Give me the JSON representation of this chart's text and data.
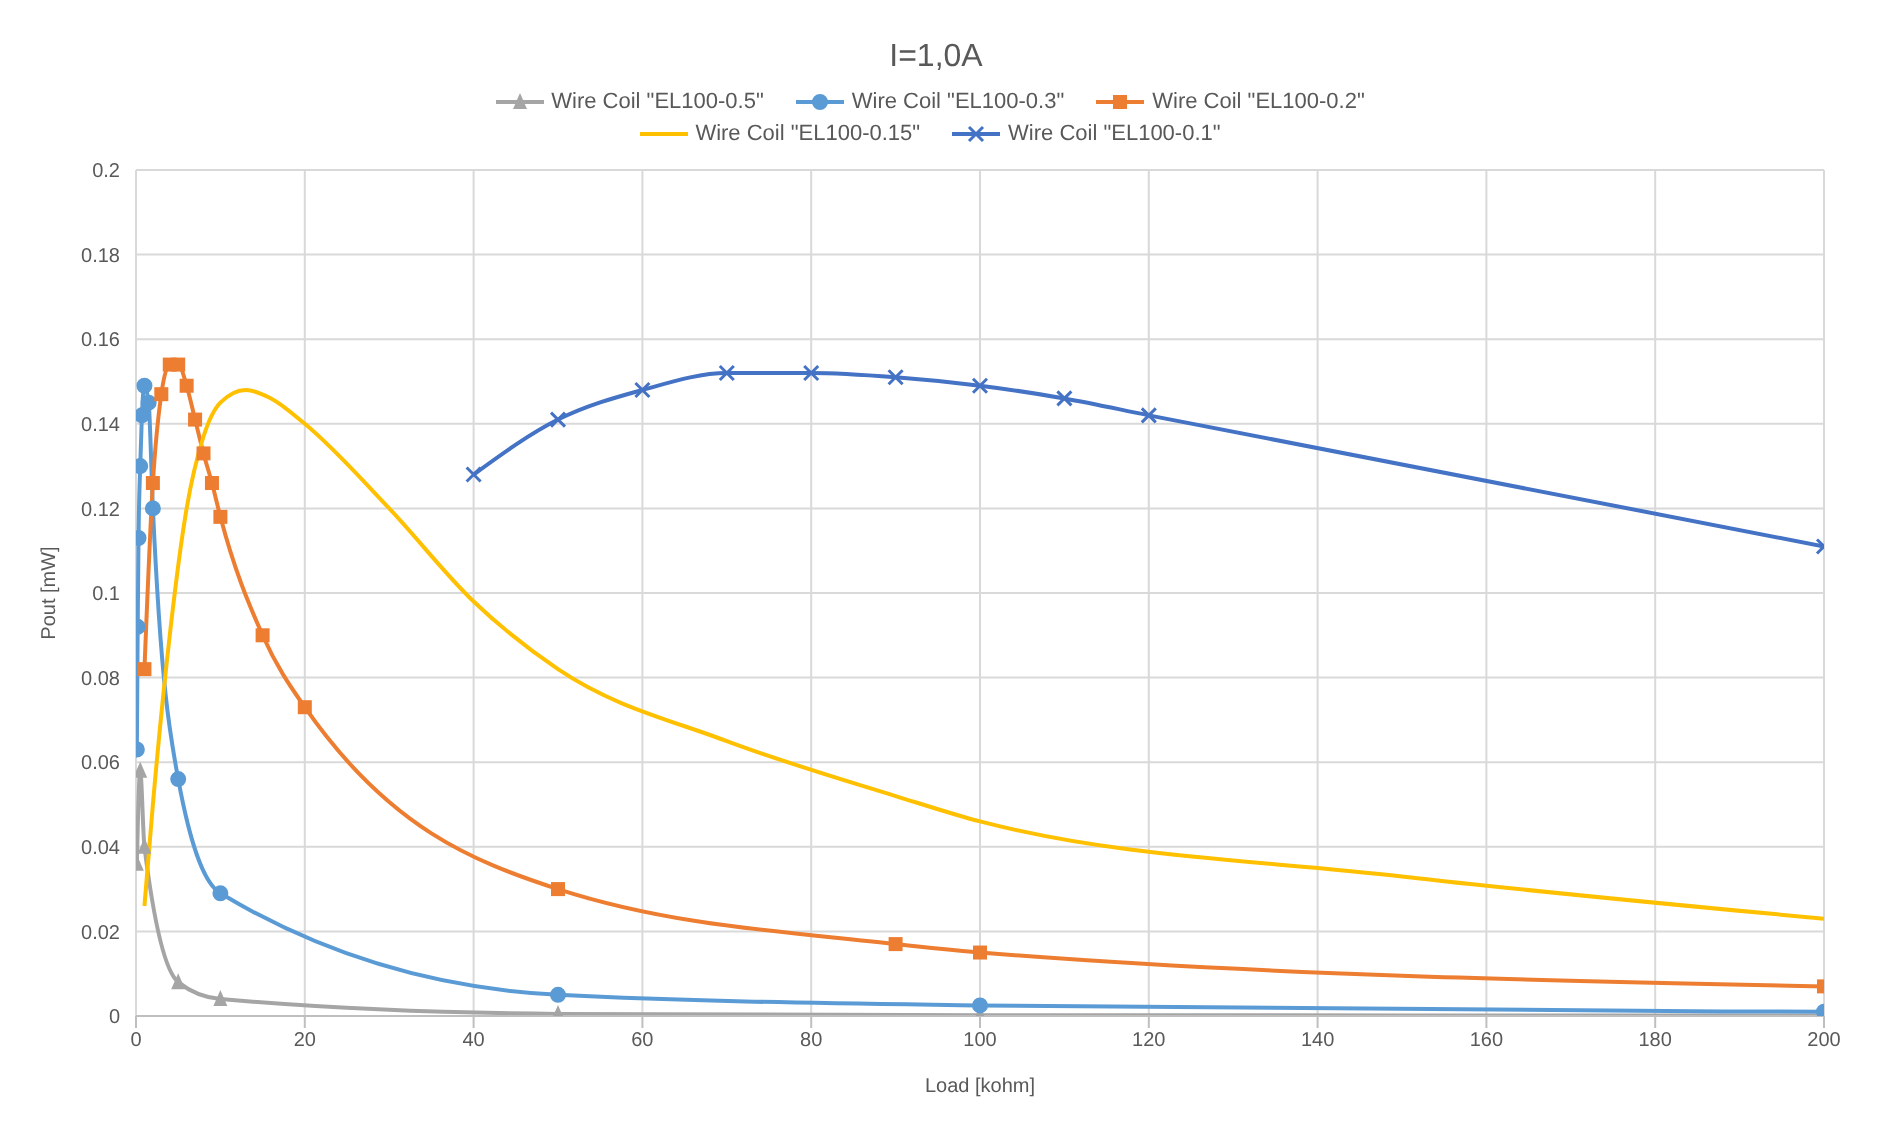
{
  "chart_data": {
    "type": "line",
    "title": "I=1,0A",
    "xlabel": "Load [kohm]",
    "ylabel": "Pout [mW]",
    "xlim": [
      0,
      200
    ],
    "xticks": [
      0,
      20,
      40,
      60,
      80,
      100,
      120,
      140,
      160,
      180,
      200
    ],
    "ylim": [
      0,
      0.2
    ],
    "yticks": [
      0,
      0.02,
      0.04,
      0.06,
      0.08,
      0.1,
      0.12,
      0.14,
      0.16,
      0.18,
      0.2
    ],
    "grid": true,
    "legend": "top",
    "line_style": "solid",
    "series": [
      {
        "name": "Wire Coil \"EL100-0.5\"",
        "color": "#a5a5a5",
        "marker": "triangle",
        "x": [
          0.1,
          0.5,
          1,
          5,
          10,
          50,
          100,
          200
        ],
        "values": [
          0.036,
          0.058,
          0.04,
          0.008,
          0.004,
          0.0005,
          0.0002,
          0.0001
        ]
      },
      {
        "name": "Wire Coil \"EL100-0.3\"",
        "color": "#5b9bd5",
        "marker": "circle",
        "x": [
          0.1,
          0.2,
          0.3,
          0.5,
          0.7,
          1,
          1.5,
          2,
          5,
          10,
          50,
          100,
          200
        ],
        "values": [
          0.063,
          0.092,
          0.113,
          0.13,
          0.142,
          0.149,
          0.145,
          0.12,
          0.056,
          0.029,
          0.005,
          0.0025,
          0.001
        ]
      },
      {
        "name": "Wire Coil \"EL100-0.2\"",
        "color": "#ed7d31",
        "marker": "square",
        "x": [
          1,
          2,
          3,
          4,
          5,
          6,
          7,
          8,
          9,
          10,
          15,
          20,
          50,
          90,
          100,
          200
        ],
        "values": [
          0.082,
          0.126,
          0.147,
          0.154,
          0.154,
          0.149,
          0.141,
          0.133,
          0.126,
          0.118,
          0.09,
          0.073,
          0.03,
          0.017,
          0.015,
          0.007
        ]
      },
      {
        "name": "Wire Coil \"EL100-0.15\"",
        "color": "#ffc000",
        "marker": "none",
        "x": [
          1,
          2,
          4,
          6,
          8,
          10,
          13,
          16,
          20,
          30,
          40,
          50,
          70,
          90,
          100,
          150,
          200
        ],
        "values": [
          0.026,
          0.05,
          0.09,
          0.12,
          0.137,
          0.145,
          0.148,
          0.146,
          0.14,
          0.12,
          0.098,
          0.082,
          0.065,
          0.052,
          0.046,
          0.033,
          0.023
        ]
      },
      {
        "name": "Wire Coil \"EL100-0.1\"",
        "color": "#4472c4",
        "marker": "cross",
        "x": [
          40,
          50,
          60,
          70,
          80,
          90,
          100,
          110,
          120,
          200
        ],
        "values": [
          0.128,
          0.141,
          0.148,
          0.152,
          0.152,
          0.151,
          0.149,
          0.146,
          0.142,
          0.111
        ]
      }
    ]
  }
}
